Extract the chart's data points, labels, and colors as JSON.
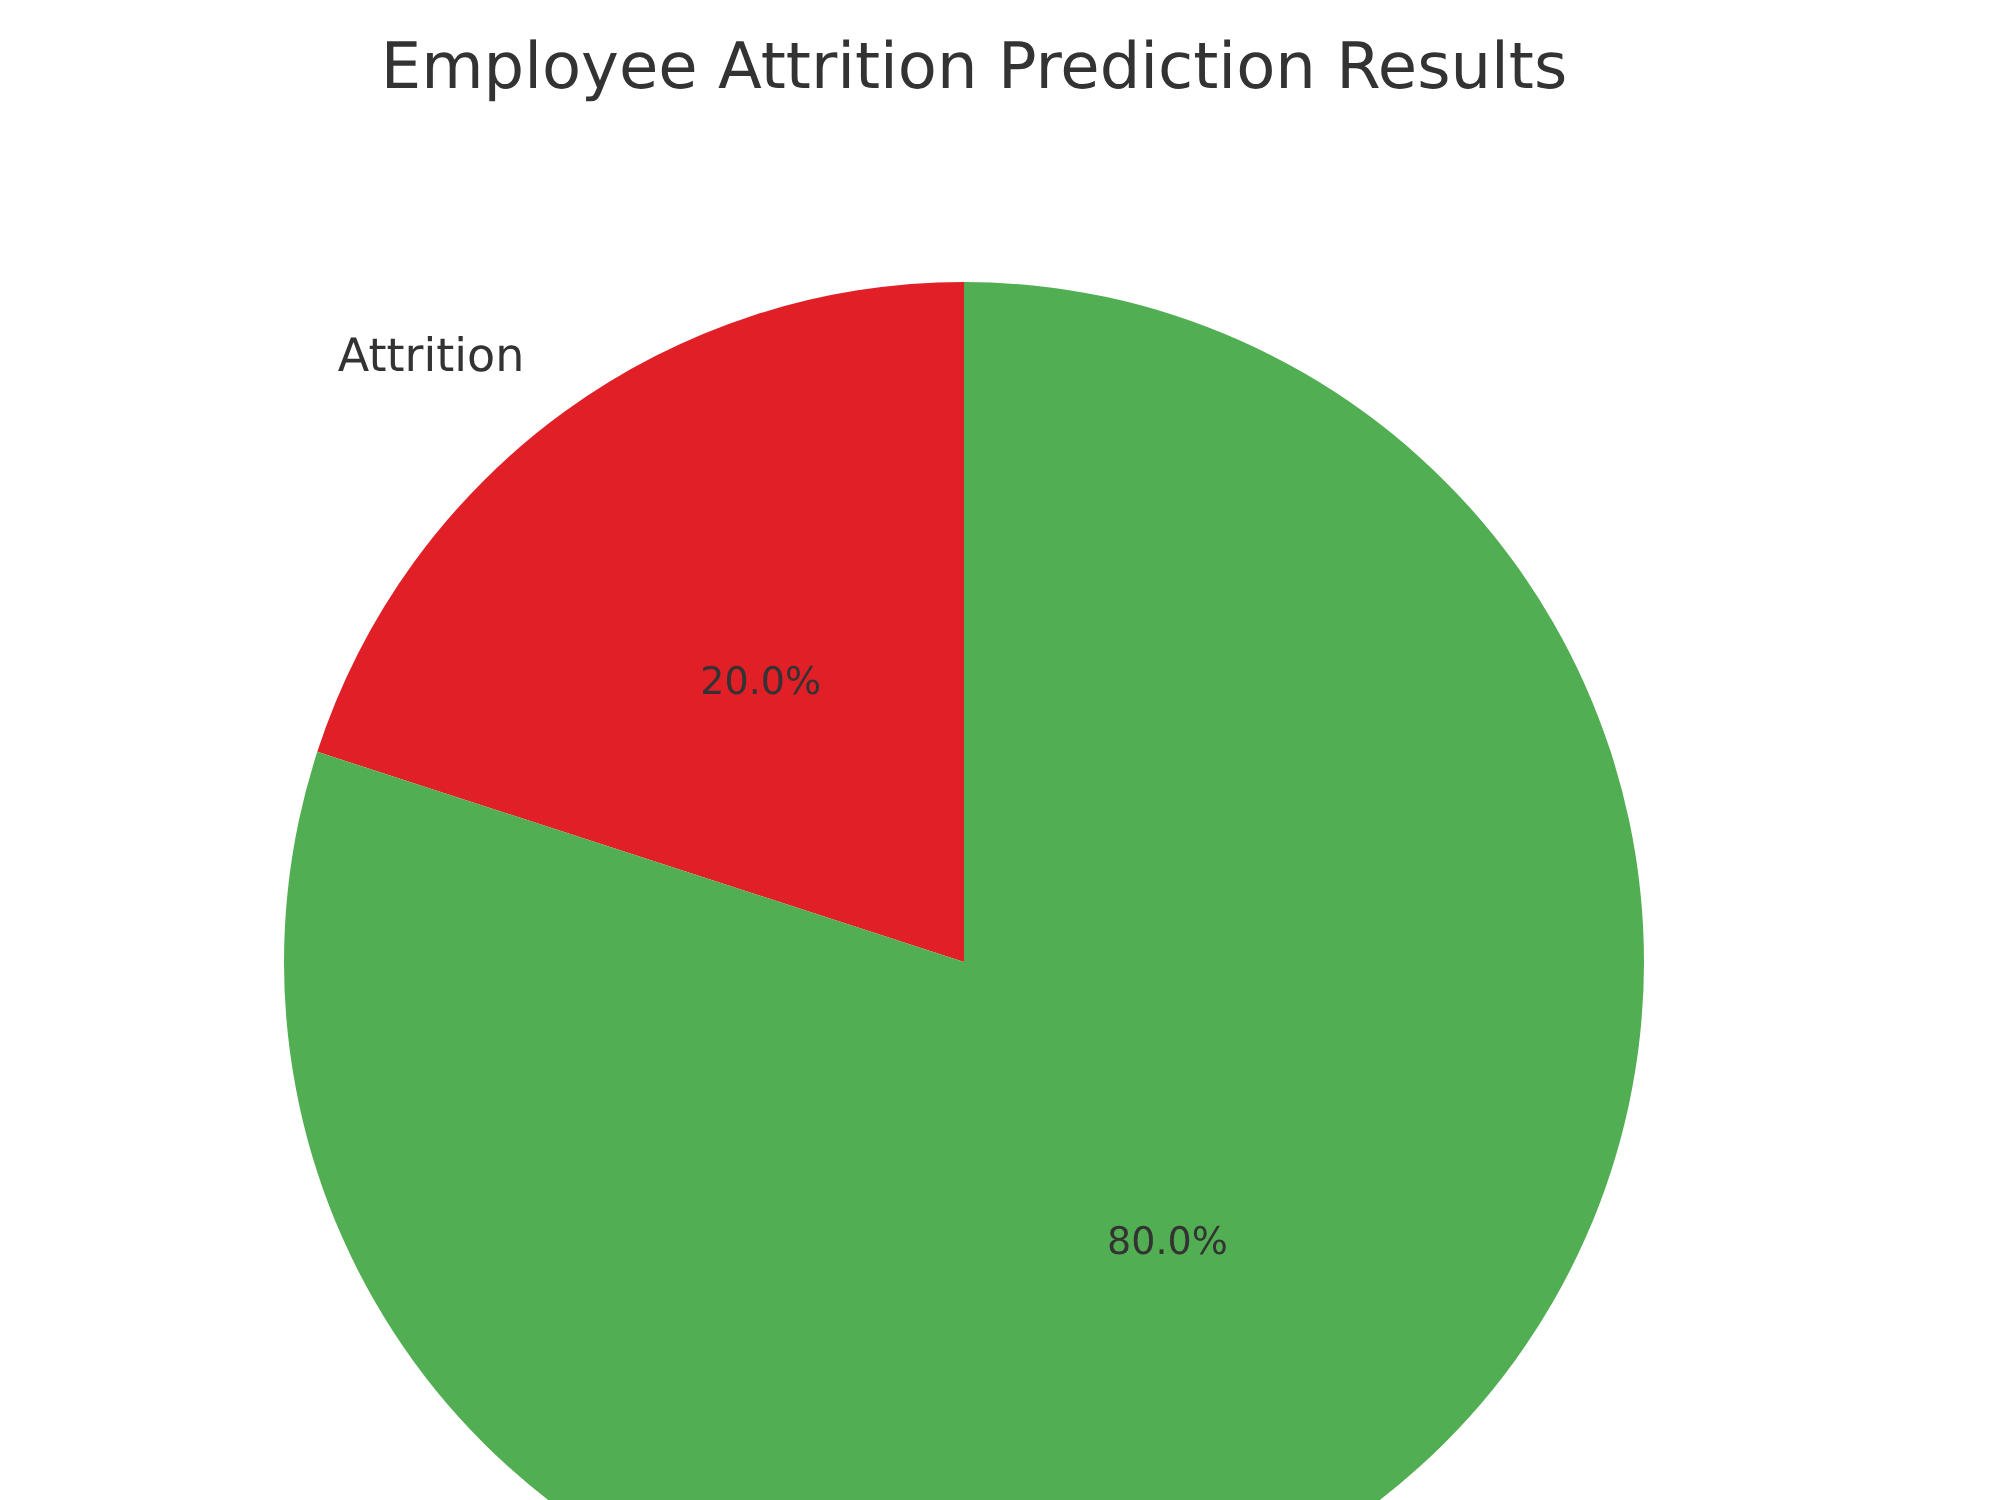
{
  "chart_data": {
    "type": "pie",
    "title": "Employee Attrition Prediction Results",
    "categories": [
      "Attrition",
      null
    ],
    "values": [
      20,
      80
    ],
    "value_labels": [
      "20.0%",
      "80.0%"
    ],
    "colors": [
      "#e01f27",
      "#52ae52"
    ],
    "legend": false
  }
}
